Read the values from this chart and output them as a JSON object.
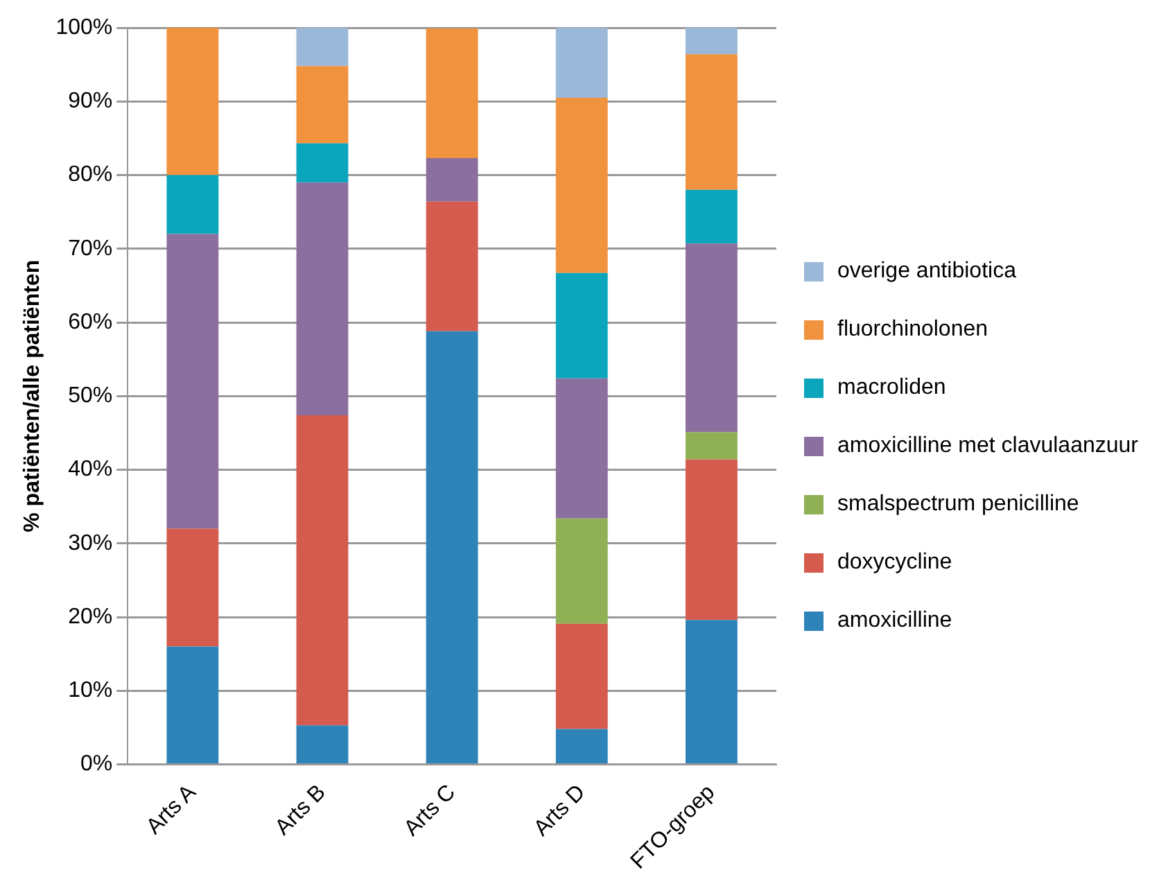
{
  "chart_data": {
    "type": "bar",
    "stacked": true,
    "ylabel": "% patiënten/alle patiënten",
    "categories": [
      "Arts A",
      "Arts B",
      "Arts C",
      "Arts D",
      "FTO-groep"
    ],
    "series": [
      {
        "name": "amoxicilline",
        "color": "#2e84b8",
        "values": [
          16,
          5.3,
          58.8,
          4.8,
          19.6
        ]
      },
      {
        "name": "doxycycline",
        "color": "#d45b4d",
        "values": [
          16,
          42.1,
          17.6,
          14.3,
          21.8
        ]
      },
      {
        "name": "smalspectrum penicilline",
        "color": "#8fb055",
        "values": [
          0,
          0,
          0,
          14.3,
          3.7
        ]
      },
      {
        "name": "amoxicilline met clavulaanzuur",
        "color": "#8b6f9f",
        "values": [
          40,
          31.6,
          5.9,
          19,
          25.6
        ]
      },
      {
        "name": "macroliden",
        "color": "#0ca6bc",
        "values": [
          8,
          5.3,
          0,
          14.3,
          7.3
        ]
      },
      {
        "name": "fluorchinolonen",
        "color": "#f0923e",
        "values": [
          20,
          10.5,
          17.6,
          23.8,
          18.4
        ]
      },
      {
        "name": "overige antibiotica",
        "color": "#9bb8d9",
        "values": [
          0,
          5.3,
          0,
          9.5,
          3.6
        ]
      }
    ],
    "ylim": [
      0,
      100
    ],
    "yticks": [
      {
        "value": 0,
        "label": "0%"
      },
      {
        "value": 10,
        "label": "10%"
      },
      {
        "value": 20,
        "label": "20%"
      },
      {
        "value": 30,
        "label": "30%"
      },
      {
        "value": 40,
        "label": "40%"
      },
      {
        "value": 50,
        "label": "50%"
      },
      {
        "value": 60,
        "label": "60%"
      },
      {
        "value": 70,
        "label": "70%"
      },
      {
        "value": 80,
        "label": "80%"
      },
      {
        "value": 90,
        "label": "90%"
      },
      {
        "value": 100,
        "label": "100%"
      }
    ],
    "grid": "y",
    "legend": "right"
  }
}
